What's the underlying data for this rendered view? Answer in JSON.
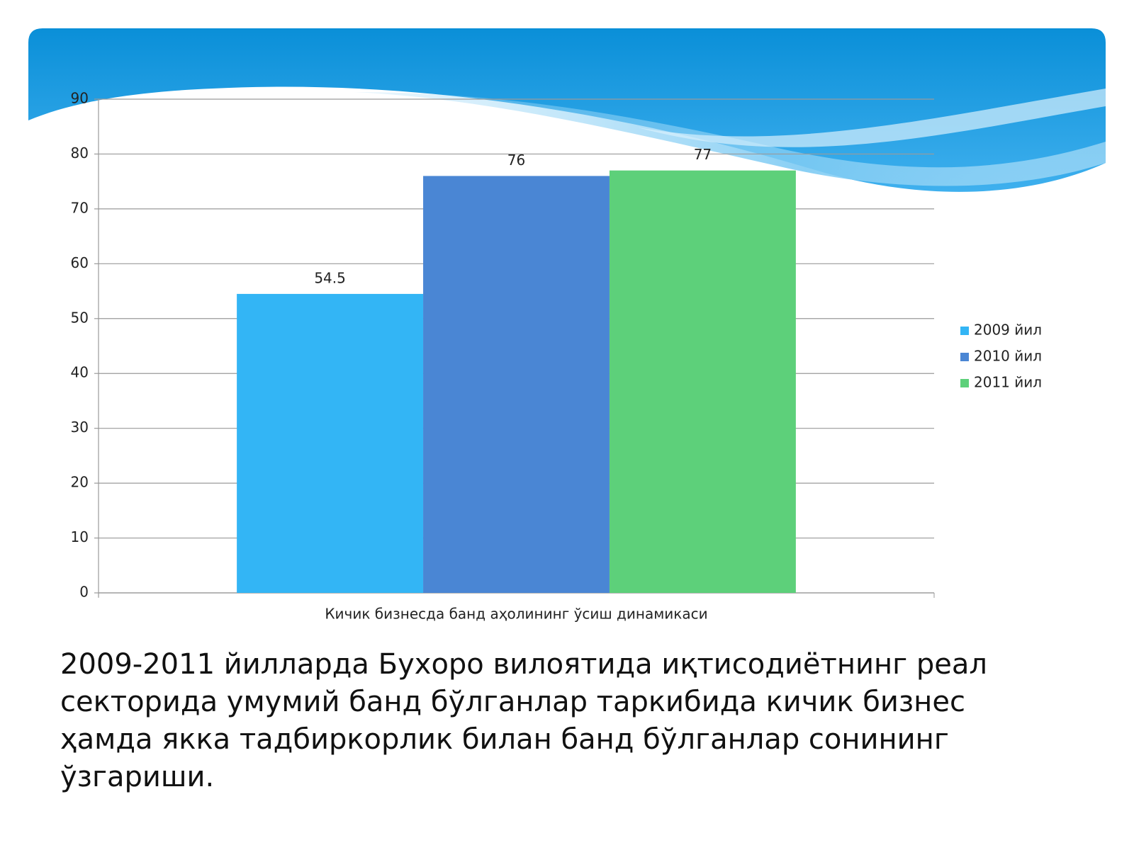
{
  "chart_data": {
    "type": "bar",
    "categories": [
      "Кичик бизнесда банд аҳолининг ўсиш динамикаси"
    ],
    "series": [
      {
        "name": "2009 йил",
        "color": "#33b5f5",
        "values": [
          54.5
        ]
      },
      {
        "name": "2010 йил",
        "color": "#4a86d4",
        "values": [
          76
        ]
      },
      {
        "name": "2011 йил",
        "color": "#5dd07a",
        "values": [
          77
        ]
      }
    ],
    "ylim": [
      0,
      90
    ],
    "yticks": [
      0,
      10,
      20,
      30,
      40,
      50,
      60,
      70,
      80,
      90
    ],
    "grid": true,
    "legend": "right"
  },
  "caption": "2009-2011 йилларда Бухоро вилоятида иқтисодиётнинг реал секторида умумий банд бўлганлар таркибида кичик бизнес ҳамда якка тадбиркорлик билан банд бўлганлар сонининг ўзгариши."
}
